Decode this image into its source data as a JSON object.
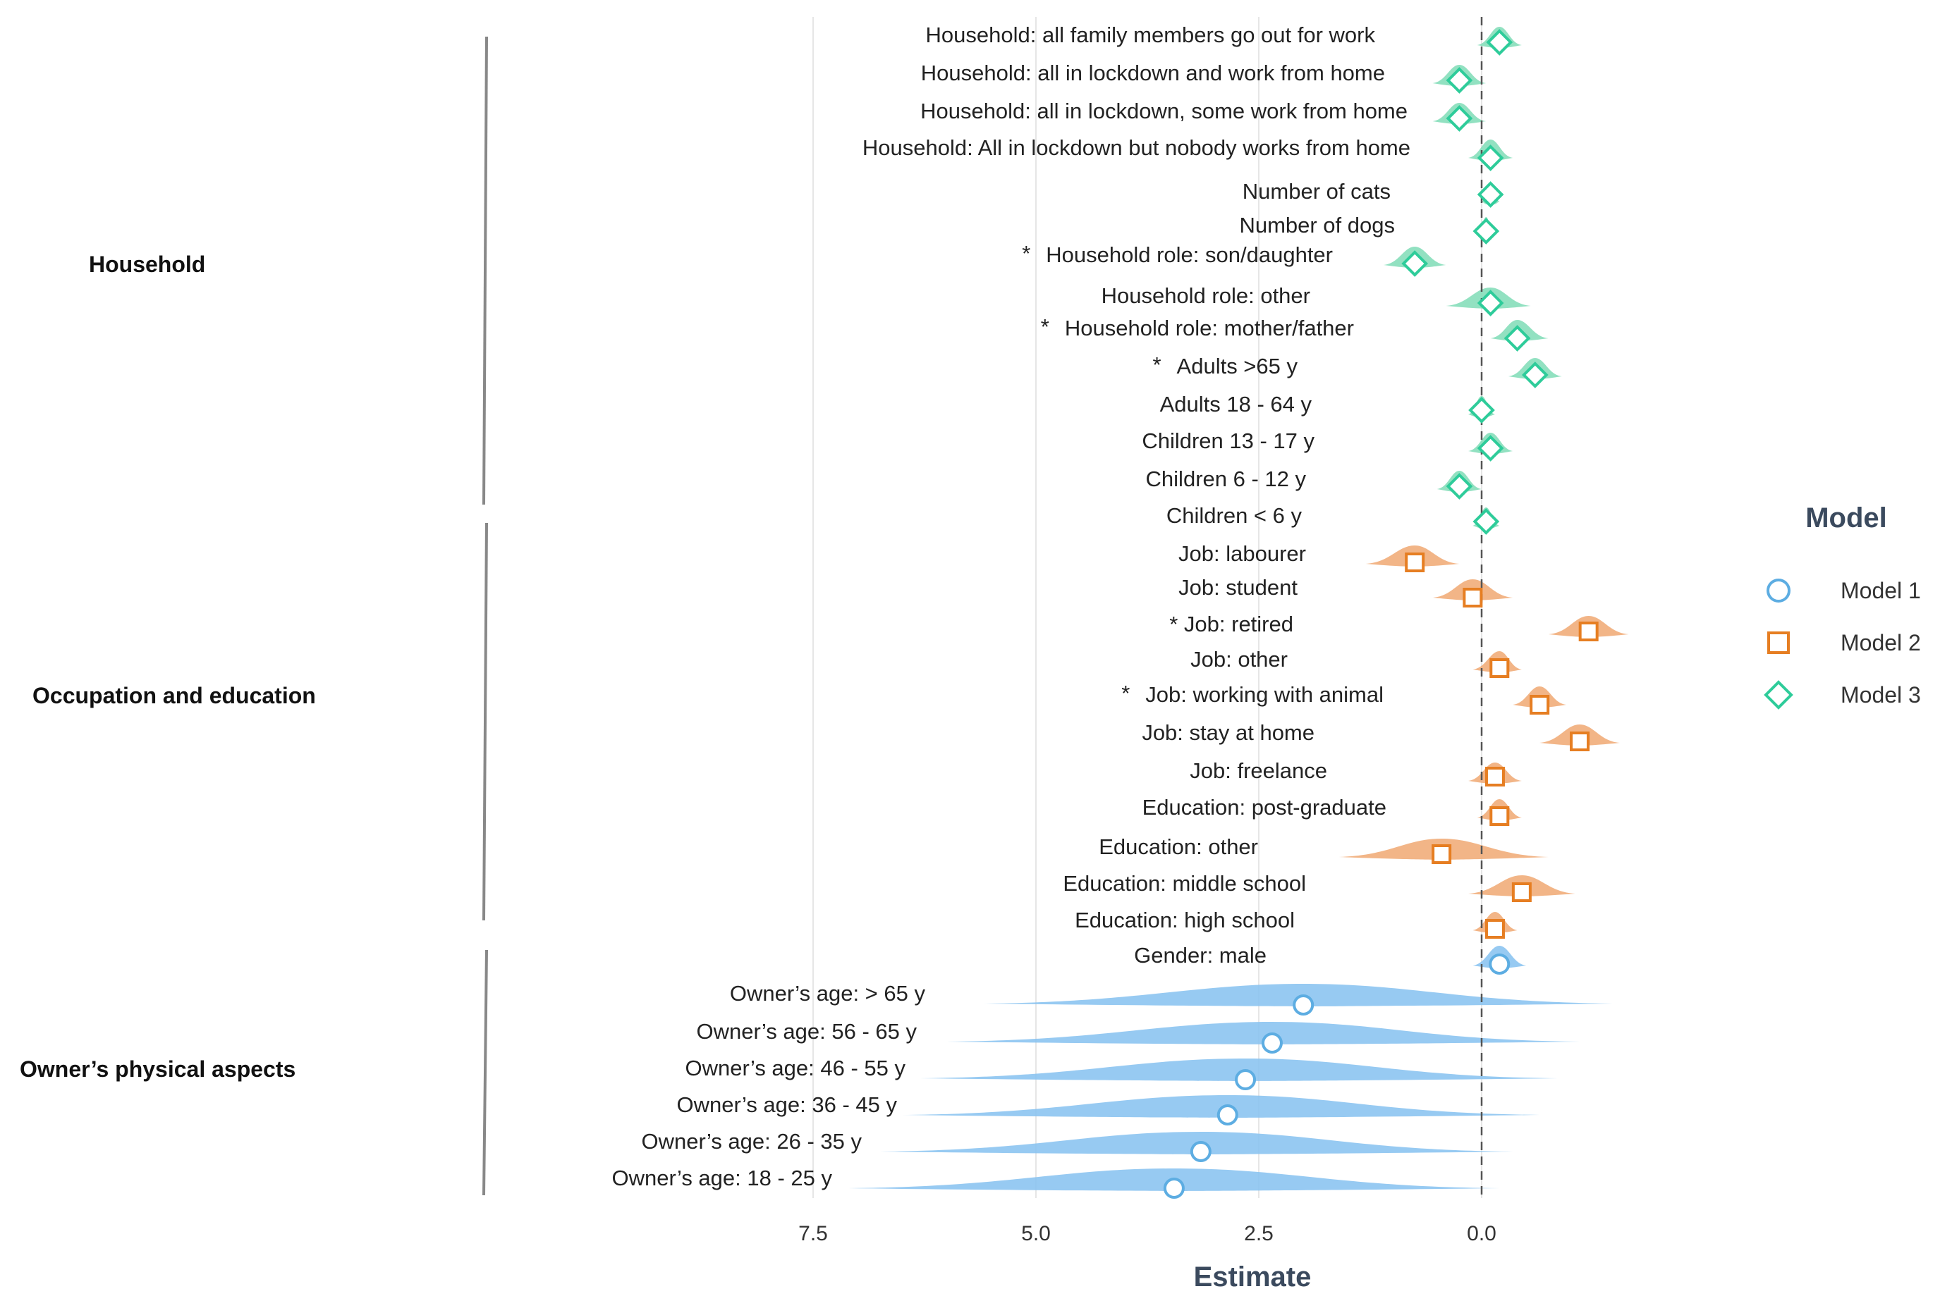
{
  "chart_data": {
    "type": "scatter",
    "subtype": "coefficient-plot with density ridges",
    "xlabel": "Estimate",
    "x_reversed": true,
    "xlim": [
      7.5,
      -2.0
    ],
    "xticks": [
      7.5,
      5.0,
      2.5,
      0.0
    ],
    "xtick_labels": [
      "7.5",
      "5.0",
      "2.5",
      "0.0"
    ],
    "reference_line": 0.0,
    "legend": {
      "title": "Model",
      "position": "right",
      "entries": [
        {
          "name": "Model 1",
          "marker": "circle",
          "color": "#5dade2"
        },
        {
          "name": "Model 2",
          "marker": "square",
          "color": "#e67e22"
        },
        {
          "name": "Model 3",
          "marker": "diamond",
          "color": "#2ecc9a"
        }
      ]
    },
    "colors": {
      "Model 1": {
        "fill": "#85c1f0",
        "stroke": "#5dade2"
      },
      "Model 2": {
        "fill": "#f0a872",
        "stroke": "#e67e22"
      },
      "Model 3": {
        "fill": "#7fdcb6",
        "stroke": "#2ecc9a"
      }
    },
    "groups": [
      {
        "name": "Household"
      },
      {
        "name": "Occupation and education"
      },
      {
        "name": "Owner’s physical aspects"
      }
    ],
    "terms": [
      {
        "label": "Household: all family members go out for work",
        "star": false,
        "model": "Model 3",
        "estimate": -0.2,
        "lo": -0.45,
        "hi": 0.05
      },
      {
        "label": "Household: all in lockdown and work from home",
        "star": false,
        "model": "Model 3",
        "estimate": 0.25,
        "lo": -0.05,
        "hi": 0.55
      },
      {
        "label": "Household: all in lockdown, some work from home",
        "star": false,
        "model": "Model 3",
        "estimate": 0.25,
        "lo": -0.05,
        "hi": 0.55
      },
      {
        "label": "Household: All in lockdown but nobody works from home",
        "star": false,
        "model": "Model 3",
        "estimate": -0.1,
        "lo": -0.35,
        "hi": 0.15
      },
      {
        "label": "Number of cats",
        "star": false,
        "model": "Model 3",
        "estimate": -0.1,
        "lo": -0.2,
        "hi": 0.0
      },
      {
        "label": "Number of dogs",
        "star": false,
        "model": "Model 3",
        "estimate": -0.05,
        "lo": -0.15,
        "hi": 0.05
      },
      {
        "label": "Household role: son/daughter",
        "star": true,
        "model": "Model 3",
        "estimate": 0.75,
        "lo": 0.4,
        "hi": 1.1
      },
      {
        "label": "Household role: other",
        "star": false,
        "model": "Model 3",
        "estimate": -0.1,
        "lo": -0.55,
        "hi": 0.4
      },
      {
        "label": "Household role: mother/father",
        "star": true,
        "model": "Model 3",
        "estimate": -0.4,
        "lo": -0.75,
        "hi": -0.1
      },
      {
        "label": "Adults >65 y",
        "star": true,
        "model": "Model 3",
        "estimate": -0.6,
        "lo": -0.9,
        "hi": -0.3
      },
      {
        "label": "Adults 18 - 64 y",
        "star": false,
        "model": "Model 3",
        "estimate": 0.0,
        "lo": -0.15,
        "hi": 0.15
      },
      {
        "label": "Children 13 - 17 y",
        "star": false,
        "model": "Model 3",
        "estimate": -0.1,
        "lo": -0.35,
        "hi": 0.15
      },
      {
        "label": "Children 6 - 12 y",
        "star": false,
        "model": "Model 3",
        "estimate": 0.25,
        "lo": 0.0,
        "hi": 0.5
      },
      {
        "label": "Children < 6 y",
        "star": false,
        "model": "Model 3",
        "estimate": -0.05,
        "lo": -0.2,
        "hi": 0.1
      },
      {
        "label": "Job: labourer",
        "star": false,
        "model": "Model 2",
        "estimate": 0.75,
        "lo": 0.25,
        "hi": 1.3
      },
      {
        "label": "Job: student",
        "star": false,
        "model": "Model 2",
        "estimate": 0.1,
        "lo": -0.35,
        "hi": 0.55
      },
      {
        "label": "* Job: retired",
        "star": true,
        "model": "Model 2",
        "estimate": -1.2,
        "lo": -1.65,
        "hi": -0.75
      },
      {
        "label": "Job: other",
        "star": false,
        "model": "Model 2",
        "estimate": -0.2,
        "lo": -0.45,
        "hi": 0.1
      },
      {
        "label": "Job: working with animal",
        "star": true,
        "model": "Model 2",
        "estimate": -0.65,
        "lo": -0.95,
        "hi": -0.35
      },
      {
        "label": "Job: stay at home",
        "star": false,
        "model": "Model 2",
        "estimate": -1.1,
        "lo": -1.55,
        "hi": -0.65
      },
      {
        "label": "Job: freelance",
        "star": false,
        "model": "Model 2",
        "estimate": -0.15,
        "lo": -0.45,
        "hi": 0.15
      },
      {
        "label": "Education: post-graduate",
        "star": false,
        "model": "Model 2",
        "estimate": -0.2,
        "lo": -0.45,
        "hi": 0.05
      },
      {
        "label": "Education: other",
        "star": false,
        "model": "Model 2",
        "estimate": 0.45,
        "lo": -0.75,
        "hi": 1.6
      },
      {
        "label": "Education: middle school",
        "star": false,
        "model": "Model 2",
        "estimate": -0.45,
        "lo": -1.05,
        "hi": 0.15
      },
      {
        "label": "Education: high school",
        "star": false,
        "model": "Model 2",
        "estimate": -0.15,
        "lo": -0.4,
        "hi": 0.1
      },
      {
        "label": "Gender: male",
        "star": false,
        "model": "Model 1",
        "estimate": -0.2,
        "lo": -0.5,
        "hi": 0.1
      },
      {
        "label": "Owner’s age: > 65 y",
        "star": false,
        "model": "Model 1",
        "estimate": 2.0,
        "lo": -1.5,
        "hi": 5.6
      },
      {
        "label": "Owner’s age: 56 - 65 y",
        "star": false,
        "model": "Model 1",
        "estimate": 2.35,
        "lo": -1.1,
        "hi": 6.0
      },
      {
        "label": "Owner’s age: 46 - 55 y",
        "star": false,
        "model": "Model 1",
        "estimate": 2.65,
        "lo": -0.85,
        "hi": 6.3
      },
      {
        "label": "Owner’s age: 36 - 45 y",
        "star": false,
        "model": "Model 1",
        "estimate": 2.85,
        "lo": -0.65,
        "hi": 6.5
      },
      {
        "label": "Owner’s age: 26 - 35 y",
        "star": false,
        "model": "Model 1",
        "estimate": 3.15,
        "lo": -0.35,
        "hi": 6.75
      },
      {
        "label": "Owner’s age: 18 - 25 y",
        "star": false,
        "model": "Model 1",
        "estimate": 3.45,
        "lo": -0.2,
        "hi": 7.1
      }
    ]
  }
}
